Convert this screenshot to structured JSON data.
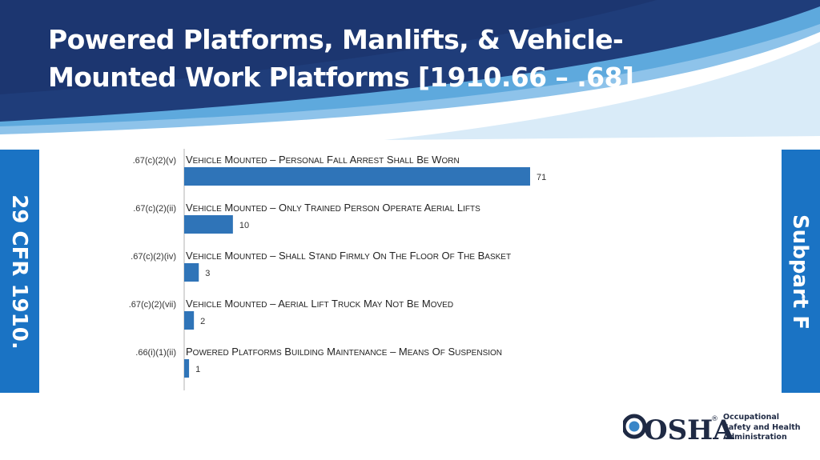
{
  "slide": {
    "title": "Powered Platforms, Manlifts, & Vehicle-Mounted Work Platforms [1910.66 – .68]",
    "left_tab": "29 CFR 1910.",
    "right_tab": "Subpart F",
    "colors": {
      "header_dark": "#1f3d7a",
      "header_light": "#8ec3ea",
      "tab": "#1a73c4",
      "bar": "#2f74b8"
    }
  },
  "logo": {
    "wordmark": "OSHA",
    "registered_mark": "®",
    "lines": [
      "Occupational",
      "Safety and Health",
      "Administration"
    ]
  },
  "chart_data": {
    "type": "bar",
    "orientation": "horizontal",
    "categories": [
      "Vehicle Mounted – Personal fall arrest shall be worn",
      "Vehicle Mounted – Only trained person operate aerial lifts",
      "Vehicle Mounted – Shall stand firmly on the floor of the basket",
      "Vehicle Mounted – Aerial lift truck may not be moved",
      "Powered Platforms Building Maintenance – Means of suspension"
    ],
    "codes": [
      ".67(c)(2)(v)",
      ".67(c)(2)(ii)",
      ".67(c)(2)(iv)",
      ".67(c)(2)(vii)",
      ".66(i)(1)(ii)"
    ],
    "values": [
      71,
      10,
      3,
      2,
      1
    ],
    "xlim": [
      0,
      71
    ],
    "grid": false,
    "legend": "none",
    "data_labels": true
  }
}
